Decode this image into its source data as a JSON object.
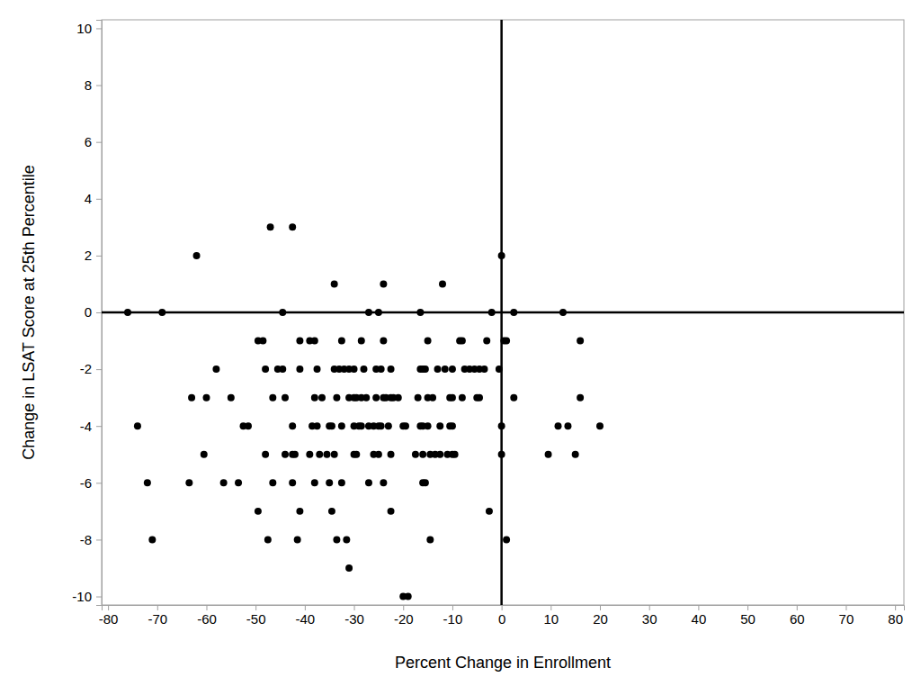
{
  "chart_data": {
    "type": "scatter",
    "x_label": "Percent Change in Enrollment",
    "y_label": "Change in LSAT Score at 25th Percentile",
    "color": "#000000",
    "marker": "circle",
    "xlim": [
      -81.3,
      81.8
    ],
    "ylim": [
      -10.3,
      10.3
    ],
    "xticks": [
      -80,
      -70,
      -60,
      -50,
      -40,
      -30,
      -20,
      -10,
      0,
      10,
      20,
      30,
      40,
      50,
      60,
      70,
      80
    ],
    "yticks": [
      -10,
      -8,
      -6,
      -4,
      -2,
      0,
      2,
      4,
      6,
      8,
      10
    ],
    "x_reference": 0,
    "y_reference": 0,
    "x": [
      -47,
      -42.5,
      -62,
      0,
      -34,
      -24,
      -12,
      -76,
      -69,
      -44.5,
      -27,
      -25,
      -16.5,
      -2,
      2.5,
      12.5,
      -49.5,
      -48.5,
      -41,
      -39,
      -38,
      -32.5,
      -28.5,
      -24,
      -15,
      -8.5,
      -8,
      -3,
      0.5,
      1,
      16,
      -58,
      -48,
      -45.5,
      -44.5,
      -41,
      -37.5,
      -34,
      -33,
      -32,
      -31,
      -30,
      -28,
      -25.5,
      -24.5,
      -22.5,
      -16.5,
      -16,
      -15.5,
      -13,
      -11.5,
      -10,
      -7.5,
      -6.5,
      -5.5,
      -4.5,
      -3.5,
      -0.5,
      -63,
      -60,
      -55,
      -46.5,
      -44,
      -38,
      -36.5,
      -33.5,
      -31,
      -30,
      -29.5,
      -28.5,
      -27.5,
      -25.5,
      -24,
      -23.5,
      -22.5,
      -22,
      -21,
      -17,
      -15,
      -14,
      -10.5,
      -10,
      -8,
      -5,
      -4.5,
      2.5,
      16,
      -74,
      -52.5,
      -51.5,
      -42.5,
      -38.5,
      -37.5,
      -35,
      -34.5,
      -32.5,
      -30,
      -29,
      -28.5,
      -27,
      -26,
      -25,
      -24.5,
      -23,
      -20,
      -19.5,
      -16.5,
      -16,
      -15,
      -12.5,
      -10.5,
      -10,
      0,
      11.5,
      13.5,
      20,
      -60.5,
      -48,
      -44,
      -42.5,
      -42,
      -39,
      -37,
      -35.5,
      -34,
      -30,
      -29.5,
      -26,
      -25,
      -22.5,
      -17.5,
      -16,
      -14.5,
      -13.5,
      -12.5,
      -11,
      -10,
      -9.5,
      0,
      9.5,
      15,
      -72,
      -63.5,
      -56.5,
      -53.5,
      -46.5,
      -42.5,
      -38,
      -35,
      -32.5,
      -27,
      -24,
      -16,
      -15.5,
      -49.5,
      -41,
      -34.5,
      -22.5,
      -2.5,
      -71,
      -47.5,
      -41.5,
      -33.5,
      -31.5,
      -14.5,
      1,
      -31,
      -20,
      -19
    ],
    "values": [
      3,
      3,
      2,
      2,
      1,
      1,
      1,
      0,
      0,
      0,
      0,
      0,
      0,
      0,
      0,
      0,
      -1,
      -1,
      -1,
      -1,
      -1,
      -1,
      -1,
      -1,
      -1,
      -1,
      -1,
      -1,
      -1,
      -1,
      -1,
      -2,
      -2,
      -2,
      -2,
      -2,
      -2,
      -2,
      -2,
      -2,
      -2,
      -2,
      -2,
      -2,
      -2,
      -2,
      -2,
      -2,
      -2,
      -2,
      -2,
      -2,
      -2,
      -2,
      -2,
      -2,
      -2,
      -2,
      -3,
      -3,
      -3,
      -3,
      -3,
      -3,
      -3,
      -3,
      -3,
      -3,
      -3,
      -3,
      -3,
      -3,
      -3,
      -3,
      -3,
      -3,
      -3,
      -3,
      -3,
      -3,
      -3,
      -3,
      -3,
      -3,
      -3,
      -3,
      -3,
      -4,
      -4,
      -4,
      -4,
      -4,
      -4,
      -4,
      -4,
      -4,
      -4,
      -4,
      -4,
      -4,
      -4,
      -4,
      -4,
      -4,
      -4,
      -4,
      -4,
      -4,
      -4,
      -4,
      -4,
      -4,
      -4,
      -4,
      -4,
      -4,
      -5,
      -5,
      -5,
      -5,
      -5,
      -5,
      -5,
      -5,
      -5,
      -5,
      -5,
      -5,
      -5,
      -5,
      -5,
      -5,
      -5,
      -5,
      -5,
      -5,
      -5,
      -5,
      -5,
      -5,
      -5,
      -6,
      -6,
      -6,
      -6,
      -6,
      -6,
      -6,
      -6,
      -6,
      -6,
      -6,
      -6,
      -6,
      -7,
      -7,
      -7,
      -7,
      -7,
      -8,
      -8,
      -8,
      -8,
      -8,
      -8,
      -8,
      -9,
      -10,
      -10
    ]
  }
}
